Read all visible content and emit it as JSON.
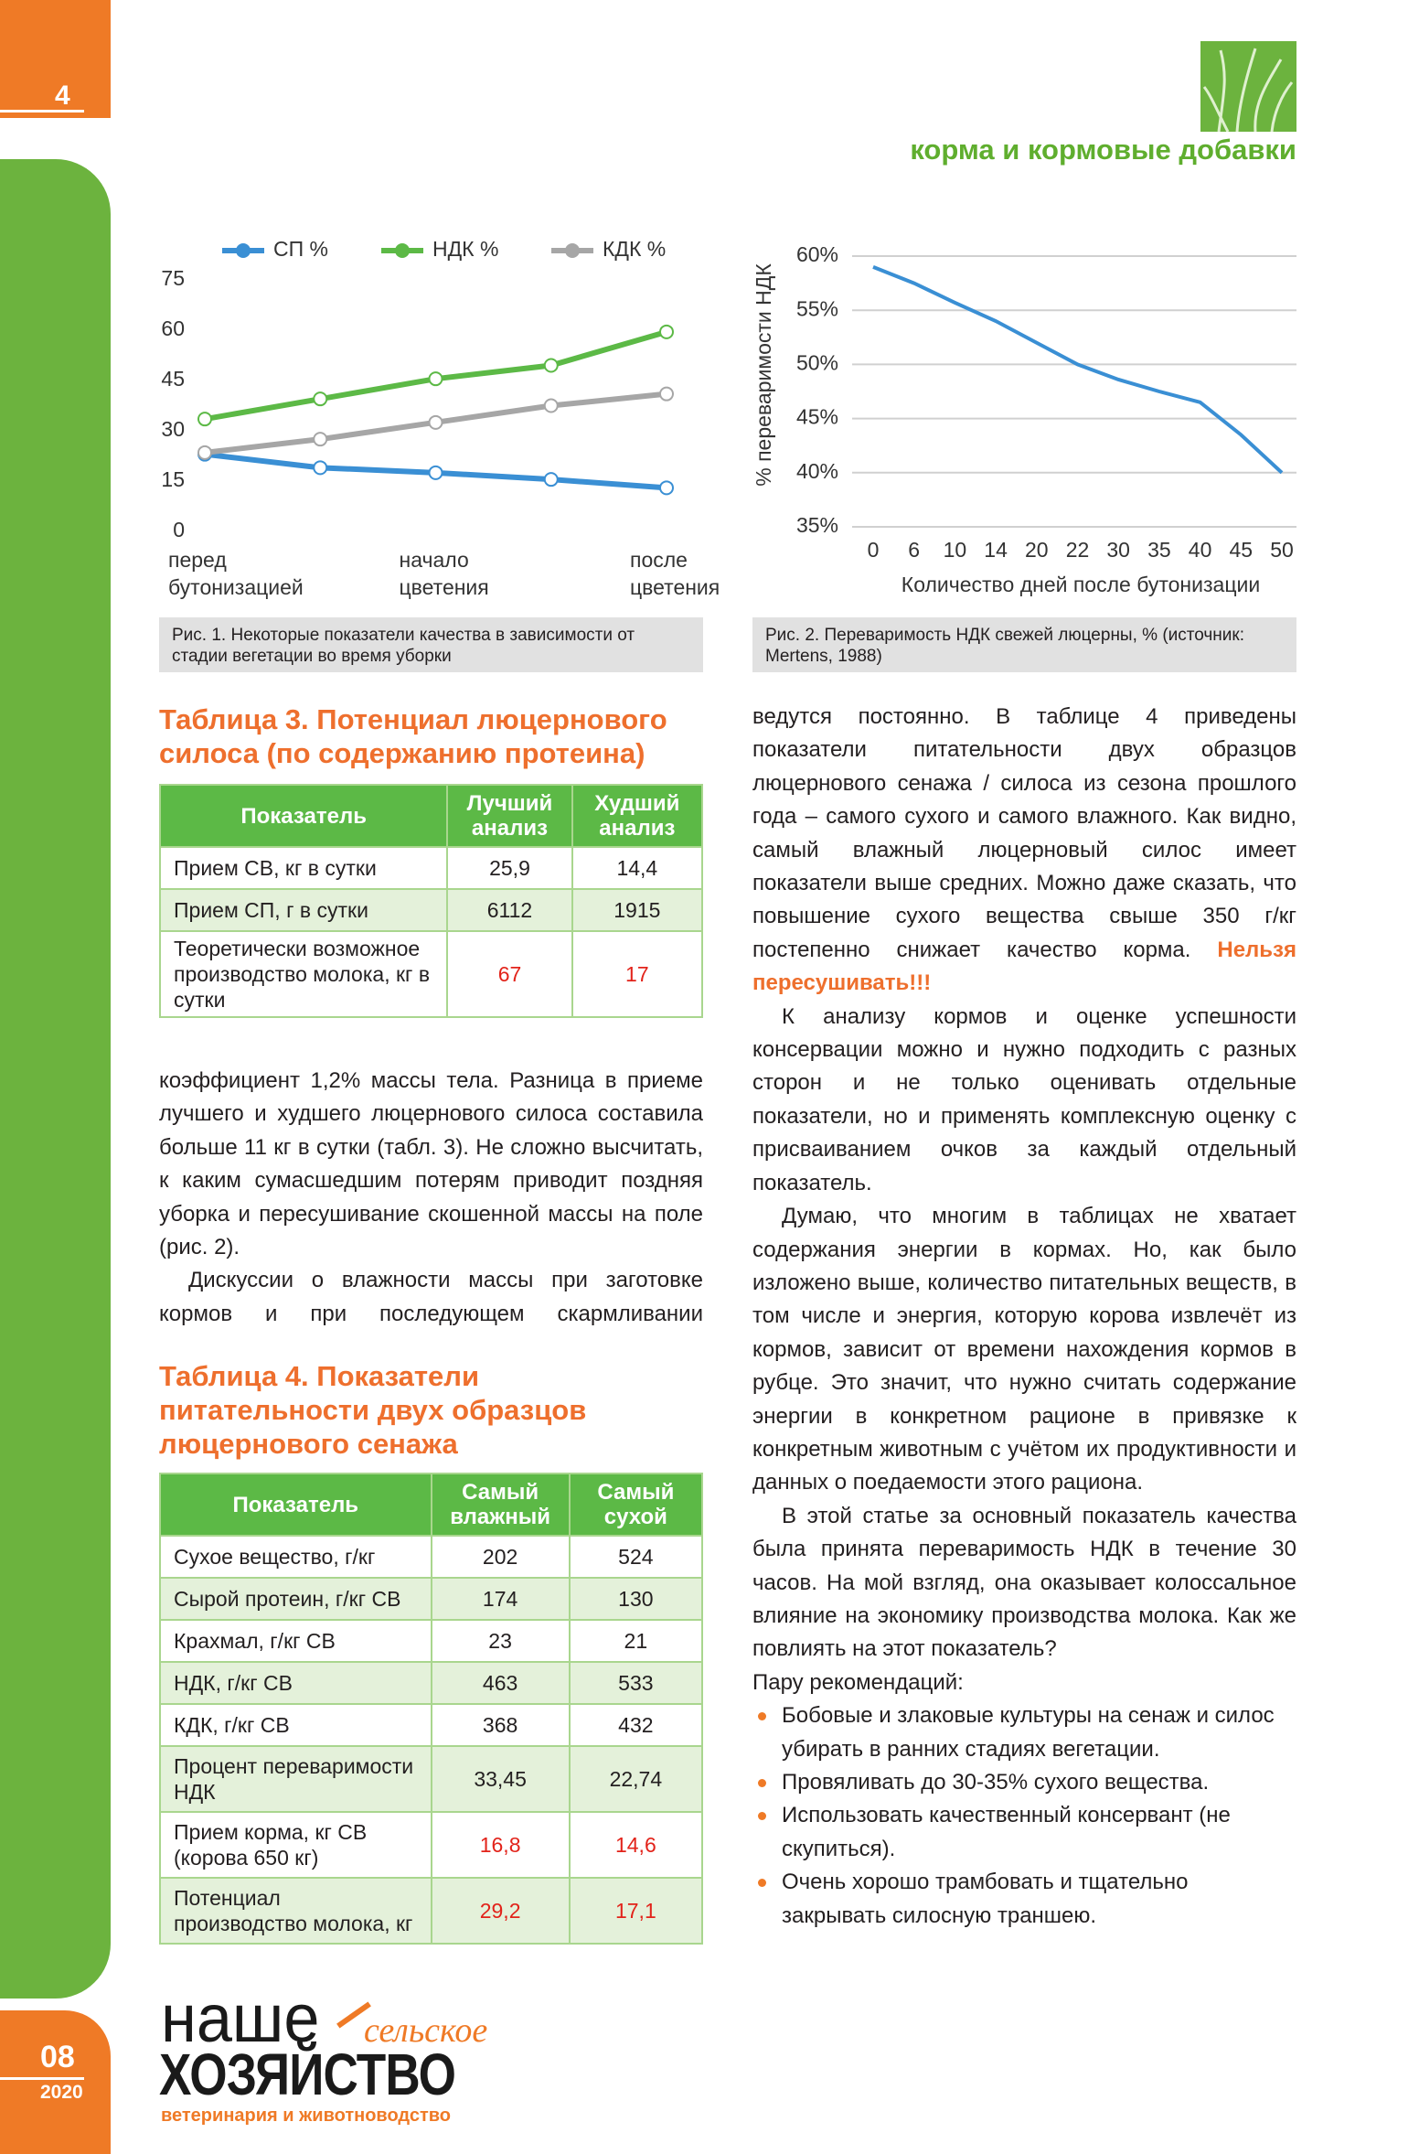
{
  "header": {
    "page_number": "4",
    "section": "корма и кормовые добавки"
  },
  "chart_data": [
    {
      "type": "line",
      "caption": "Рис. 1. Некоторые показатели качества в зависимости от стадии вегетации во время уборки",
      "categories": [
        "перед бутонизацией",
        null,
        "начало цветения",
        null,
        "после цветения"
      ],
      "series": [
        {
          "name": "СП %",
          "color": "#3a8fd4",
          "values": [
            23,
            19,
            17.5,
            15.5,
            13
          ]
        },
        {
          "name": "НДК %",
          "color": "#5cb946",
          "values": [
            33.5,
            39.5,
            45.5,
            49.5,
            59.5
          ]
        },
        {
          "name": "КДК %",
          "color": "#a6a6a6",
          "values": [
            23.5,
            27.5,
            32.5,
            37.5,
            41
          ]
        }
      ],
      "ylim": [
        0,
        75
      ],
      "yticks": [
        0,
        15,
        30,
        45,
        60,
        75
      ],
      "grid": false,
      "legend": "top",
      "markers": true
    },
    {
      "type": "line",
      "caption": "Рис. 2. Переваримость НДК свежей люцерны, % (источник: Mertens, 1988)",
      "categories": [
        "0",
        "6",
        "10",
        "14",
        "20",
        "22",
        "30",
        "35",
        "40",
        "45",
        "50"
      ],
      "series": [
        {
          "name": null,
          "color": "#3a8fd4",
          "values": [
            59,
            57.5,
            55.7,
            54,
            52,
            50,
            48.6,
            47.5,
            46.5,
            43.5,
            40
          ]
        }
      ],
      "x_label": "Количество дней после бутонизации",
      "y_label": "% переваримости НДК",
      "ylim": [
        35,
        60
      ],
      "yticks": [
        {
          "value": 35,
          "label": "35%"
        },
        {
          "value": 40,
          "label": "40%"
        },
        {
          "value": 45,
          "label": "45%"
        },
        {
          "value": 50,
          "label": "50%"
        },
        {
          "value": 55,
          "label": "55%"
        },
        {
          "value": 60,
          "label": "60%"
        }
      ],
      "grid": true,
      "markers": false
    }
  ],
  "table3": {
    "title": "Таблица 3. Потенциал люцернового силоса (по содержанию протеина)",
    "columns": [
      "Показатель",
      "Лучший анализ",
      "Худший анализ"
    ],
    "highlight_color": "#e2231a",
    "rows": [
      {
        "cells": [
          "Прием СВ, кг в сутки",
          "25,9",
          "14,4"
        ],
        "highlight": false
      },
      {
        "cells": [
          "Прием СП, г в сутки",
          "6112",
          "1915"
        ],
        "highlight": false
      },
      {
        "cells": [
          "Теоретически возможное производство молока, кг в сутки",
          "67",
          "17"
        ],
        "highlight": true
      }
    ]
  },
  "left_text": [
    "коэффициент 1,2% массы тела. Разница в приеме лучшего и худшего люцернового силоса составила больше 11 кг в сутки (табл. 3). Не сложно высчитать, к каким сумасшедшим потерям приводит поздняя уборка и пересушивание скошенной массы на поле (рис. 2).",
    "Дискуссии о влажности массы при заготовке кормов и при последующем скармливании"
  ],
  "table4": {
    "title": "Таблица 4. Показатели питательности двух образцов люцернового сенажа",
    "columns": [
      "Показатель",
      "Самый влажный",
      "Самый сухой"
    ],
    "highlight_color": "#e2231a",
    "rows": [
      {
        "cells": [
          "Сухое вещество, г/кг",
          "202",
          "524"
        ],
        "highlight": false
      },
      {
        "cells": [
          "Сырой протеин, г/кг СВ",
          "174",
          "130"
        ],
        "highlight": false
      },
      {
        "cells": [
          "Крахмал, г/кг СВ",
          "23",
          "21"
        ],
        "highlight": false
      },
      {
        "cells": [
          "НДК, г/кг СВ",
          "463",
          "533"
        ],
        "highlight": false
      },
      {
        "cells": [
          "КДК, г/кг СВ",
          "368",
          "432"
        ],
        "highlight": false
      },
      {
        "cells": [
          "Процент переваримости НДК",
          "33,45",
          "22,74"
        ],
        "highlight": false
      },
      {
        "cells": [
          "Прием корма, кг СВ (корова 650 кг)",
          "16,8",
          "14,6"
        ],
        "highlight": true
      },
      {
        "cells": [
          "Потенциал производство молока, кг",
          "29,2",
          "17,1"
        ],
        "highlight": true
      }
    ]
  },
  "right_text": {
    "paragraphs": [
      "ведутся постоянно. В таблице 4 приведены показатели питательности двух образцов люцернового сенажа / силоса из сезона прошлого года – самого сухого и самого влажного. Как видно, самый влажный люцерновый силос имеет показатели выше средних. Можно даже сказать, что повышение сухого вещества свыше 350 г/кг постепенно снижает качество корма.",
      "К анализу кормов и оценке успешности консервации можно и нужно подходить с разных сторон и не только оценивать отдельные показатели, но и применять комплексную оценку с присваиванием очков за каждый отдельный показатель.",
      "Думаю, что многим в таблицах не хватает содержания энергии в кормах. Но, как было изложено выше, количество питательных веществ, в том числе и энергия, которую корова извлечёт из кормов, зависит от времени нахождения кормов в рубце. Это значит, что нужно считать содержание энергии в конкретном рационе в привязке к конкретным животным с учётом их продуктивности и данных о поедаемости этого рациона.",
      "В этой статье за основный показатель качества была принята переваримость НДК в течение 30 часов. На мой взгляд, она оказывает колоссальное влияние на экономику производства молока. Как же повлиять на этот показатель?"
    ],
    "emphasis": "Нельзя пересушивать!!!",
    "lead_in": "Пару рекомендаций:",
    "bullets": [
      "Бобовые и злаковые культуры на сенаж и силос убирать в ранних стадиях вегетации.",
      "Провяливать до 30-35% сухого вещества.",
      "Использовать качественный консервант (не скупиться).",
      "Очень хорошо трамбовать и тщательно закрывать силосную траншею."
    ]
  },
  "footer": {
    "logo_top": "наше",
    "logo_script": "сельское",
    "logo_main": "ХОЗЯЙСТВО",
    "logo_tagline": "ветеринария и животноводство",
    "issue": "08",
    "year": "2020"
  }
}
